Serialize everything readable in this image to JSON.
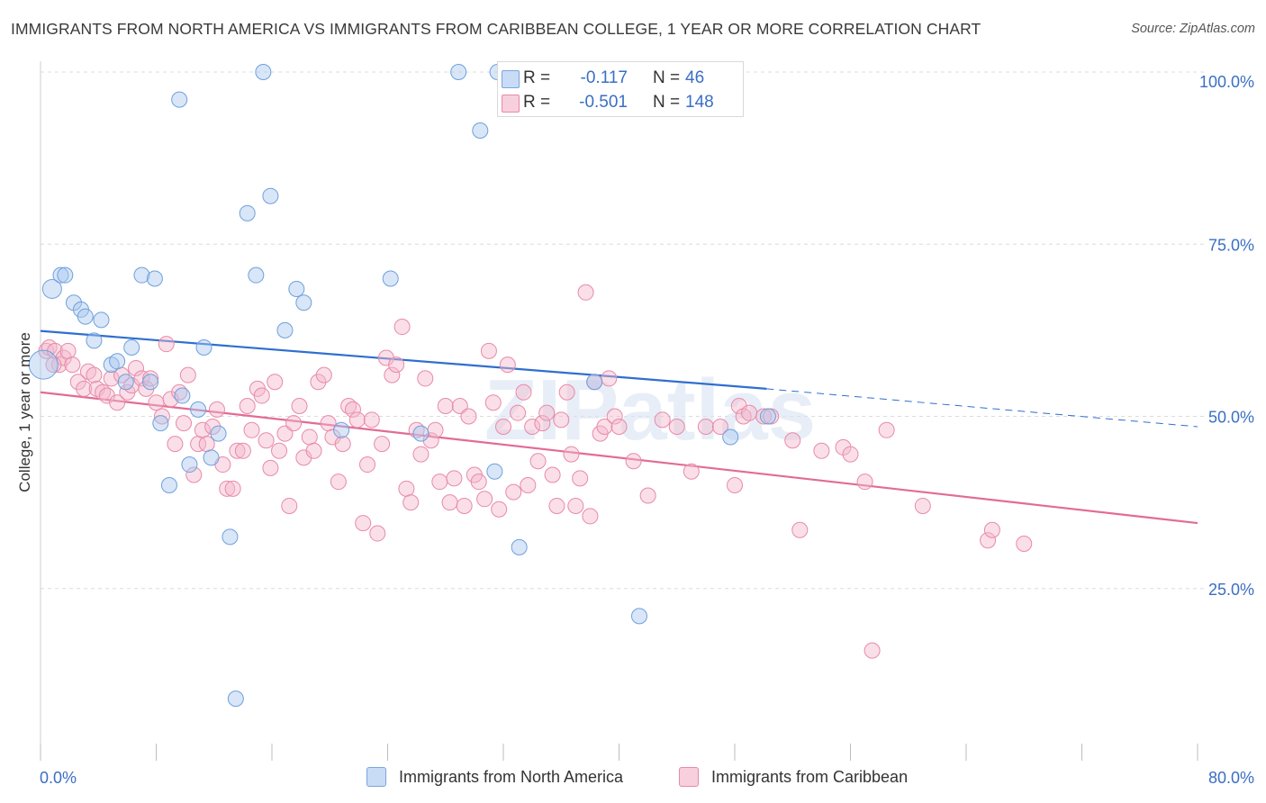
{
  "title": "IMMIGRANTS FROM NORTH AMERICA VS IMMIGRANTS FROM CARIBBEAN COLLEGE, 1 YEAR OR MORE CORRELATION CHART",
  "source": "Source: ZipAtlas.com",
  "watermark": "ZIPatlas",
  "legend": {
    "rows": [
      {
        "r_label": "R =",
        "r_value": "-0.117",
        "n_label": "N =",
        "n_value": "46",
        "color": "#a8c8f0"
      },
      {
        "r_label": "R =",
        "r_value": "-0.501",
        "n_label": "N =",
        "n_value": "148",
        "color": "#f5b8cc"
      }
    ]
  },
  "bottom_legend": [
    "Immigrants from North America",
    "Immigrants from Caribbean"
  ],
  "colors": {
    "blue_fill": "#a8c8f0",
    "blue_stroke": "#6fa0dc",
    "blue_line": "#2f6fcf",
    "pink_fill": "#f5b8cc",
    "pink_stroke": "#e88aa8",
    "pink_line": "#e26b96",
    "tick_text": "#3a6fc4",
    "grid": "#dcdcdc"
  },
  "chart_data": {
    "type": "scatter",
    "title": "IMMIGRANTS FROM NORTH AMERICA VS IMMIGRANTS FROM CARIBBEAN COLLEGE, 1 YEAR OR MORE CORRELATION CHART",
    "xlabel": "",
    "ylabel": "College, 1 year or more",
    "xlim": [
      0,
      80
    ],
    "ylim": [
      0,
      100
    ],
    "x_tick_labels": [
      "0.0%",
      "80.0%"
    ],
    "y_ticks": [
      25,
      50,
      75,
      100
    ],
    "y_tick_labels": [
      "25.0%",
      "50.0%",
      "75.0%",
      "100.0%"
    ],
    "grid": "horizontal dashed",
    "series": [
      {
        "name": "Immigrants from North America",
        "color": "#a8c8f0",
        "regression": {
          "x": [
            0,
            50.2
          ],
          "y": [
            62.4,
            54.0
          ],
          "dashed_extension_to": [
            80,
            48.5
          ]
        },
        "points": [
          [
            0.2,
            57.5
          ],
          [
            0.8,
            68.5
          ],
          [
            1.4,
            70.5
          ],
          [
            1.7,
            70.5
          ],
          [
            2.3,
            66.5
          ],
          [
            2.8,
            65.5
          ],
          [
            3.1,
            64.5
          ],
          [
            3.7,
            61
          ],
          [
            4.2,
            64
          ],
          [
            4.9,
            57.5
          ],
          [
            5.3,
            58
          ],
          [
            5.9,
            55
          ],
          [
            6.3,
            60
          ],
          [
            7.0,
            70.5
          ],
          [
            7.6,
            55
          ],
          [
            7.9,
            70
          ],
          [
            8.3,
            49
          ],
          [
            8.9,
            40
          ],
          [
            9.6,
            96
          ],
          [
            9.8,
            53
          ],
          [
            10.3,
            43
          ],
          [
            10.9,
            51
          ],
          [
            11.3,
            60
          ],
          [
            11.8,
            44
          ],
          [
            12.3,
            47.5
          ],
          [
            13.1,
            32.5
          ],
          [
            13.5,
            9
          ],
          [
            14.3,
            79.5
          ],
          [
            14.9,
            70.5
          ],
          [
            15.4,
            100
          ],
          [
            15.9,
            82
          ],
          [
            16.9,
            62.5
          ],
          [
            17.7,
            68.5
          ],
          [
            18.2,
            66.5
          ],
          [
            20.8,
            48
          ],
          [
            24.2,
            70
          ],
          [
            26.3,
            47.5
          ],
          [
            28.9,
            100
          ],
          [
            30.4,
            91.5
          ],
          [
            31.4,
            42
          ],
          [
            31.6,
            100
          ],
          [
            33.1,
            31
          ],
          [
            38.3,
            55
          ],
          [
            41.4,
            21
          ],
          [
            47.7,
            47
          ],
          [
            50.3,
            50
          ]
        ]
      },
      {
        "name": "Immigrants from Caribbean",
        "color": "#f5b8cc",
        "regression": {
          "x": [
            0,
            80
          ],
          "y": [
            53.5,
            34.5
          ]
        },
        "points": [
          [
            0.4,
            59.5
          ],
          [
            0.6,
            60
          ],
          [
            1.0,
            59.5
          ],
          [
            1.3,
            57.5
          ],
          [
            1.6,
            58.5
          ],
          [
            1.9,
            59.5
          ],
          [
            2.2,
            57.5
          ],
          [
            2.6,
            55
          ],
          [
            3.0,
            54
          ],
          [
            3.3,
            56.5
          ],
          [
            3.7,
            56
          ],
          [
            3.9,
            54
          ],
          [
            4.3,
            53.5
          ],
          [
            4.6,
            53
          ],
          [
            4.9,
            55.5
          ],
          [
            5.3,
            52
          ],
          [
            5.6,
            56
          ],
          [
            6.0,
            53.5
          ],
          [
            6.3,
            54.5
          ],
          [
            6.6,
            57
          ],
          [
            7.0,
            55.5
          ],
          [
            7.3,
            54
          ],
          [
            7.6,
            55.5
          ],
          [
            8.0,
            52
          ],
          [
            8.4,
            50
          ],
          [
            8.7,
            60.5
          ],
          [
            9.0,
            52.5
          ],
          [
            9.3,
            46
          ],
          [
            9.6,
            53.5
          ],
          [
            9.9,
            49
          ],
          [
            10.2,
            56
          ],
          [
            10.6,
            41.5
          ],
          [
            10.9,
            46
          ],
          [
            11.2,
            48
          ],
          [
            11.5,
            46
          ],
          [
            11.9,
            48.5
          ],
          [
            12.2,
            51
          ],
          [
            12.6,
            43
          ],
          [
            12.9,
            39.5
          ],
          [
            13.3,
            39.5
          ],
          [
            13.6,
            45
          ],
          [
            14.0,
            45
          ],
          [
            14.3,
            51.5
          ],
          [
            14.6,
            48
          ],
          [
            15.0,
            54
          ],
          [
            15.3,
            53
          ],
          [
            15.6,
            46.5
          ],
          [
            15.9,
            42.5
          ],
          [
            16.2,
            55
          ],
          [
            16.5,
            45
          ],
          [
            16.9,
            47.5
          ],
          [
            17.2,
            37
          ],
          [
            17.5,
            49
          ],
          [
            17.9,
            51.5
          ],
          [
            18.2,
            44
          ],
          [
            18.6,
            47
          ],
          [
            18.9,
            45
          ],
          [
            19.2,
            55
          ],
          [
            19.6,
            56
          ],
          [
            19.9,
            49
          ],
          [
            20.2,
            47
          ],
          [
            20.6,
            40.5
          ],
          [
            20.9,
            46
          ],
          [
            21.3,
            51.5
          ],
          [
            21.6,
            51
          ],
          [
            21.9,
            49.5
          ],
          [
            22.3,
            34.5
          ],
          [
            22.6,
            43
          ],
          [
            22.9,
            49.5
          ],
          [
            23.3,
            33
          ],
          [
            23.6,
            46
          ],
          [
            23.9,
            58.5
          ],
          [
            24.3,
            56
          ],
          [
            24.6,
            57.5
          ],
          [
            25.0,
            63
          ],
          [
            25.3,
            39.5
          ],
          [
            25.6,
            37.5
          ],
          [
            26.0,
            48
          ],
          [
            26.3,
            44.5
          ],
          [
            26.6,
            55.5
          ],
          [
            27.0,
            46.5
          ],
          [
            27.3,
            48
          ],
          [
            27.6,
            40.5
          ],
          [
            28.0,
            51.5
          ],
          [
            28.3,
            37.5
          ],
          [
            28.6,
            41
          ],
          [
            29.0,
            51.5
          ],
          [
            29.3,
            37
          ],
          [
            29.6,
            50
          ],
          [
            30.0,
            41.5
          ],
          [
            30.3,
            40.5
          ],
          [
            30.7,
            38
          ],
          [
            31.0,
            59.5
          ],
          [
            31.3,
            52
          ],
          [
            31.7,
            36.5
          ],
          [
            32.0,
            48.5
          ],
          [
            32.3,
            57.5
          ],
          [
            32.7,
            39
          ],
          [
            33.0,
            50.5
          ],
          [
            33.4,
            53.5
          ],
          [
            33.7,
            40
          ],
          [
            34.0,
            48.5
          ],
          [
            34.4,
            43.5
          ],
          [
            34.7,
            49
          ],
          [
            35.0,
            50.5
          ],
          [
            35.4,
            41.5
          ],
          [
            35.7,
            37
          ],
          [
            36.0,
            49.5
          ],
          [
            36.4,
            53.5
          ],
          [
            36.7,
            44.5
          ],
          [
            37.0,
            37
          ],
          [
            37.3,
            41
          ],
          [
            37.7,
            68
          ],
          [
            38.0,
            35.5
          ],
          [
            38.3,
            55
          ],
          [
            38.7,
            47.5
          ],
          [
            39.0,
            48.5
          ],
          [
            39.3,
            55.5
          ],
          [
            39.7,
            50
          ],
          [
            40.0,
            48.5
          ],
          [
            41.0,
            43.5
          ],
          [
            42.0,
            38.5
          ],
          [
            43.0,
            49.5
          ],
          [
            44.0,
            48.5
          ],
          [
            45.0,
            42
          ],
          [
            46.0,
            48.5
          ],
          [
            47.0,
            48.5
          ],
          [
            48.0,
            40
          ],
          [
            48.3,
            51.5
          ],
          [
            48.6,
            50
          ],
          [
            49.0,
            50.5
          ],
          [
            50.0,
            50
          ],
          [
            50.5,
            50
          ],
          [
            52.0,
            46.5
          ],
          [
            52.5,
            33.5
          ],
          [
            54.0,
            45
          ],
          [
            55.5,
            45.5
          ],
          [
            56.0,
            44.5
          ],
          [
            57.0,
            40.5
          ],
          [
            57.5,
            16
          ],
          [
            58.5,
            48
          ],
          [
            61.0,
            37
          ],
          [
            65.5,
            32
          ],
          [
            65.8,
            33.5
          ],
          [
            68.0,
            31.5
          ],
          [
            0.9,
            57.5
          ]
        ]
      }
    ]
  }
}
